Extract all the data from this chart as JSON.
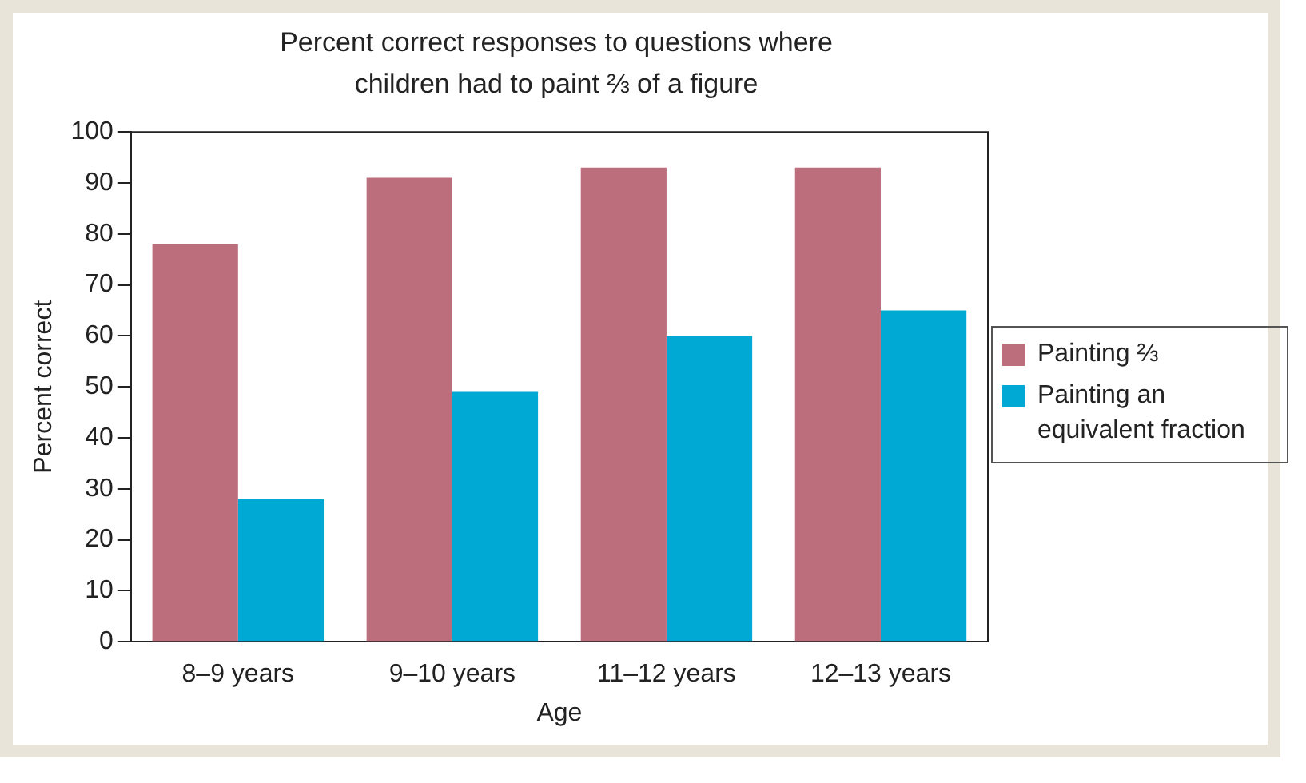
{
  "chart_data": {
    "type": "bar",
    "title": "Percent correct responses to questions where children had to paint ⅔ of a figure",
    "xlabel": "Age",
    "ylabel": "Percent correct",
    "categories": [
      "8–9 years",
      "9–10 years",
      "11–12 years",
      "12–13 years"
    ],
    "series": [
      {
        "name": "Painting ⅔",
        "color": "#bc6e7d",
        "values": [
          78,
          91,
          93,
          93
        ]
      },
      {
        "name": "Painting an equivalent fraction",
        "color": "#00a8d4",
        "values": [
          28,
          49,
          60,
          65
        ]
      }
    ],
    "ylim": [
      0,
      100
    ],
    "yticks": [
      0,
      10,
      20,
      30,
      40,
      50,
      60,
      70,
      80,
      90,
      100
    ],
    "grid": false,
    "legend": "right"
  }
}
